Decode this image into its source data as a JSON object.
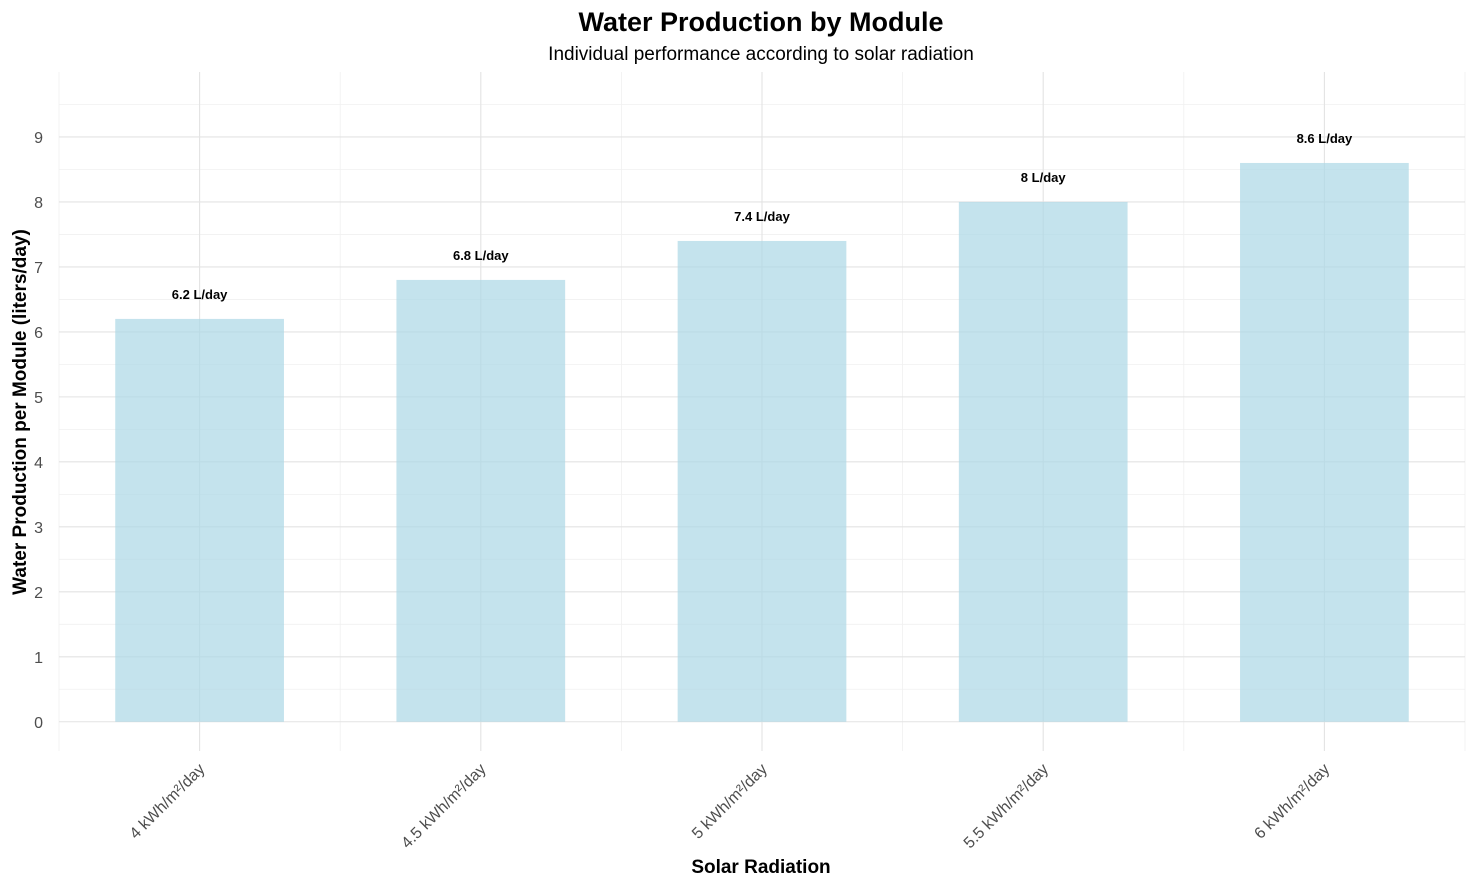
{
  "chart_data": {
    "type": "bar",
    "title": "Water Production by Module",
    "subtitle": "Individual performance according to solar radiation",
    "xlabel": "Solar Radiation",
    "ylabel": "Water Production per Module (liters/day)",
    "categories": [
      "4 kWh/m²/day",
      "4.5 kWh/m²/day",
      "5 kWh/m²/day",
      "5.5 kWh/m²/day",
      "6 kWh/m²/day"
    ],
    "values": [
      6.2,
      6.8,
      7.4,
      8,
      8.6
    ],
    "data_labels": [
      "6.2 L/day",
      "6.8 L/day",
      "7.4 L/day",
      "8 L/day",
      "8.6 L/day"
    ],
    "yticks": [
      0,
      1,
      2,
      3,
      4,
      5,
      6,
      7,
      8,
      9
    ],
    "ylim": [
      -0.45,
      10
    ],
    "grid": true,
    "legend": "none",
    "colors": {
      "bar": "#add8e6",
      "grid_major": "#e3e3e3",
      "grid_minor": "#f0f0f0",
      "tick_text": "#4d4d4d",
      "text": "#000000"
    }
  }
}
